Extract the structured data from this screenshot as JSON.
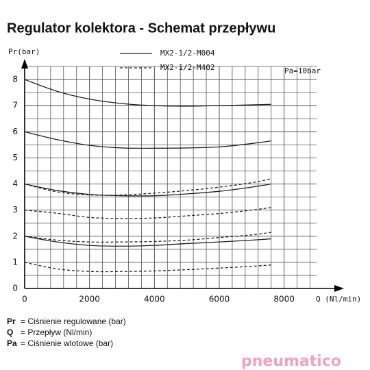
{
  "chart_data": {
    "type": "line",
    "title": "Regulator kolektora - Schemat przepływu",
    "y_label": "Pr(bar)",
    "x_label": "Q (Nl/min)",
    "annotation": "Pa=10bar",
    "legend": [
      {
        "name": "MX2-1/2-M004",
        "style": "solid"
      },
      {
        "name": "MX2-1/2-M402",
        "style": "dashed"
      }
    ],
    "x": [
      0,
      1000,
      2000,
      3000,
      4000,
      5000,
      6000,
      7000,
      7600
    ],
    "series": [
      {
        "style": "solid",
        "color": "#222222",
        "values": [
          8,
          7.55,
          7.25,
          7.08,
          7.0,
          6.98,
          7.0,
          7.03,
          7.05
        ]
      },
      {
        "style": "solid",
        "color": "#222222",
        "values": [
          6,
          5.7,
          5.48,
          5.38,
          5.37,
          5.38,
          5.42,
          5.55,
          5.65
        ]
      },
      {
        "style": "solid",
        "color": "#222222",
        "values": [
          4,
          3.75,
          3.6,
          3.55,
          3.55,
          3.62,
          3.72,
          3.88,
          4.0
        ]
      },
      {
        "style": "solid",
        "color": "#222222",
        "values": [
          2,
          1.78,
          1.65,
          1.62,
          1.65,
          1.72,
          1.78,
          1.85,
          1.9
        ]
      },
      {
        "style": "dashed",
        "color": "#222222",
        "values": [
          4,
          3.7,
          3.58,
          3.58,
          3.65,
          3.75,
          3.88,
          4.05,
          4.2
        ]
      },
      {
        "style": "dashed",
        "color": "#222222",
        "values": [
          3,
          2.88,
          2.72,
          2.68,
          2.7,
          2.78,
          2.87,
          3.0,
          3.1
        ]
      },
      {
        "style": "dashed",
        "color": "#222222",
        "values": [
          2,
          1.85,
          1.78,
          1.78,
          1.8,
          1.85,
          1.95,
          2.05,
          2.15
        ]
      },
      {
        "style": "dashed",
        "color": "#222222",
        "values": [
          1,
          0.75,
          0.65,
          0.65,
          0.67,
          0.72,
          0.78,
          0.85,
          0.9
        ]
      }
    ],
    "xlim": [
      0,
      9000
    ],
    "ylim": [
      0,
      8.5
    ],
    "xticks": [
      0,
      2000,
      4000,
      6000,
      8000
    ],
    "yticks": [
      0,
      1,
      2,
      3,
      4,
      5,
      6,
      7,
      8
    ],
    "grid": true
  },
  "footnotes": [
    {
      "symbol": "Pr",
      "text": "= Ciśnienie regulowane (bar)"
    },
    {
      "symbol": "Q",
      "text": "= Przepływ (Nl/min)"
    },
    {
      "symbol": "Pa",
      "text": "= Ciśnienie wlotowe (bar)"
    }
  ],
  "logo": "pneumatico"
}
